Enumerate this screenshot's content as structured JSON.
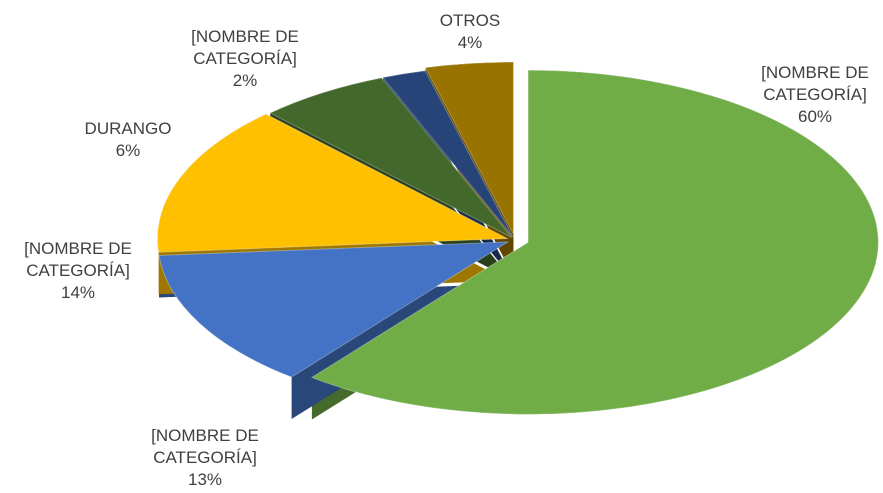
{
  "chart_data": {
    "type": "pie",
    "categories": [
      "[NOMBRE DE CATEGORÍA]",
      "[NOMBRE DE CATEGORÍA]",
      "[NOMBRE DE CATEGORÍA]",
      "DURANGO",
      "[NOMBRE DE CATEGORÍA]",
      "OTROS"
    ],
    "values": [
      60,
      13,
      14,
      6,
      2,
      4
    ],
    "value_labels": [
      "60%",
      "13%",
      "14%",
      "6%",
      "2%",
      "4%"
    ],
    "colors": [
      "#70ad47",
      "#4472c4",
      "#ffc000",
      "#43682b",
      "#264478",
      "#997300"
    ]
  }
}
